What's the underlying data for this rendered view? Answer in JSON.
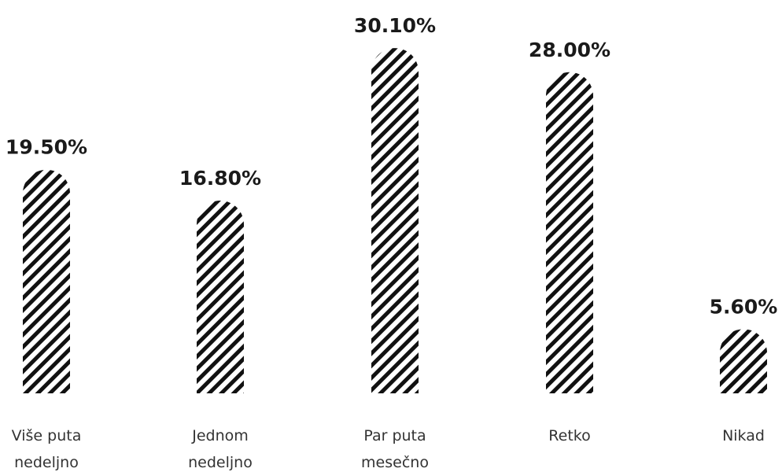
{
  "chart_data": {
    "type": "bar",
    "categories": [
      [
        "Više puta",
        "nedeljno"
      ],
      [
        "Jednom",
        "nedeljno"
      ],
      [
        "Par puta",
        "mesečno"
      ],
      [
        "Retko"
      ],
      [
        "Nikad"
      ]
    ],
    "values": [
      19.5,
      16.8,
      30.1,
      28.0,
      5.6
    ],
    "value_labels": [
      "19.50%",
      "16.80%",
      "30.10%",
      "28.00%",
      "5.60%"
    ],
    "unit": "%",
    "title": "",
    "xlabel": "",
    "ylabel": "",
    "grid": false,
    "legend": "none",
    "bar_fill": "diagonal-stripes",
    "stripe_color": "#111111",
    "background_color": "#ffffff"
  }
}
